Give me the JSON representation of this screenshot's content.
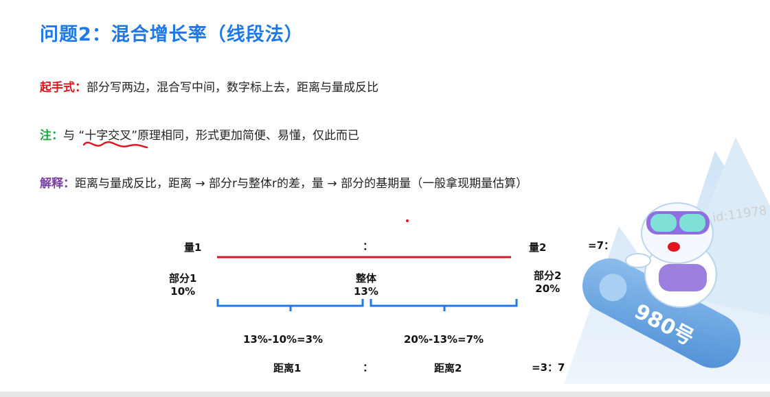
{
  "title": "问题2：混合增长率（线段法）",
  "lines": {
    "l1_label": "起手式：",
    "l1_text": "部分写两边，混合写中间，数字标上去，距离与量成反比",
    "l2_label": "注：",
    "l2_pre": "与",
    "l2_quote": "“十字交叉”",
    "l2_post": "原理相同，形式更加简便、易懂，仅此而已",
    "l3_label": "解释：",
    "l3_text": "距离与量成反比，距离 → 部分r与整体r的差，量 → 部分的基期量（一般拿现期量估算）"
  },
  "diagram": {
    "q1": "量1",
    "colon_top": "：",
    "q2": "量2",
    "ratio_top": "=7：3",
    "part1": "部分1",
    "part1_val": "10%",
    "whole": "整体",
    "whole_val": "13%",
    "part2": "部分2",
    "part2_val": "20%",
    "calc1": "13%-10%=3%",
    "calc2": "20%-13%=7%",
    "dist1": "距离1",
    "colon_bottom": "：",
    "dist2": "距离2",
    "ratio_bottom": "=3：7"
  },
  "mascot": {
    "badge": "980号",
    "watermark": "id:11978"
  },
  "colors": {
    "title": "#1e78e6",
    "red": "#e0141e",
    "green": "#1fa44a",
    "purple": "#7a3fa6",
    "bracket": "#1e78e6"
  }
}
